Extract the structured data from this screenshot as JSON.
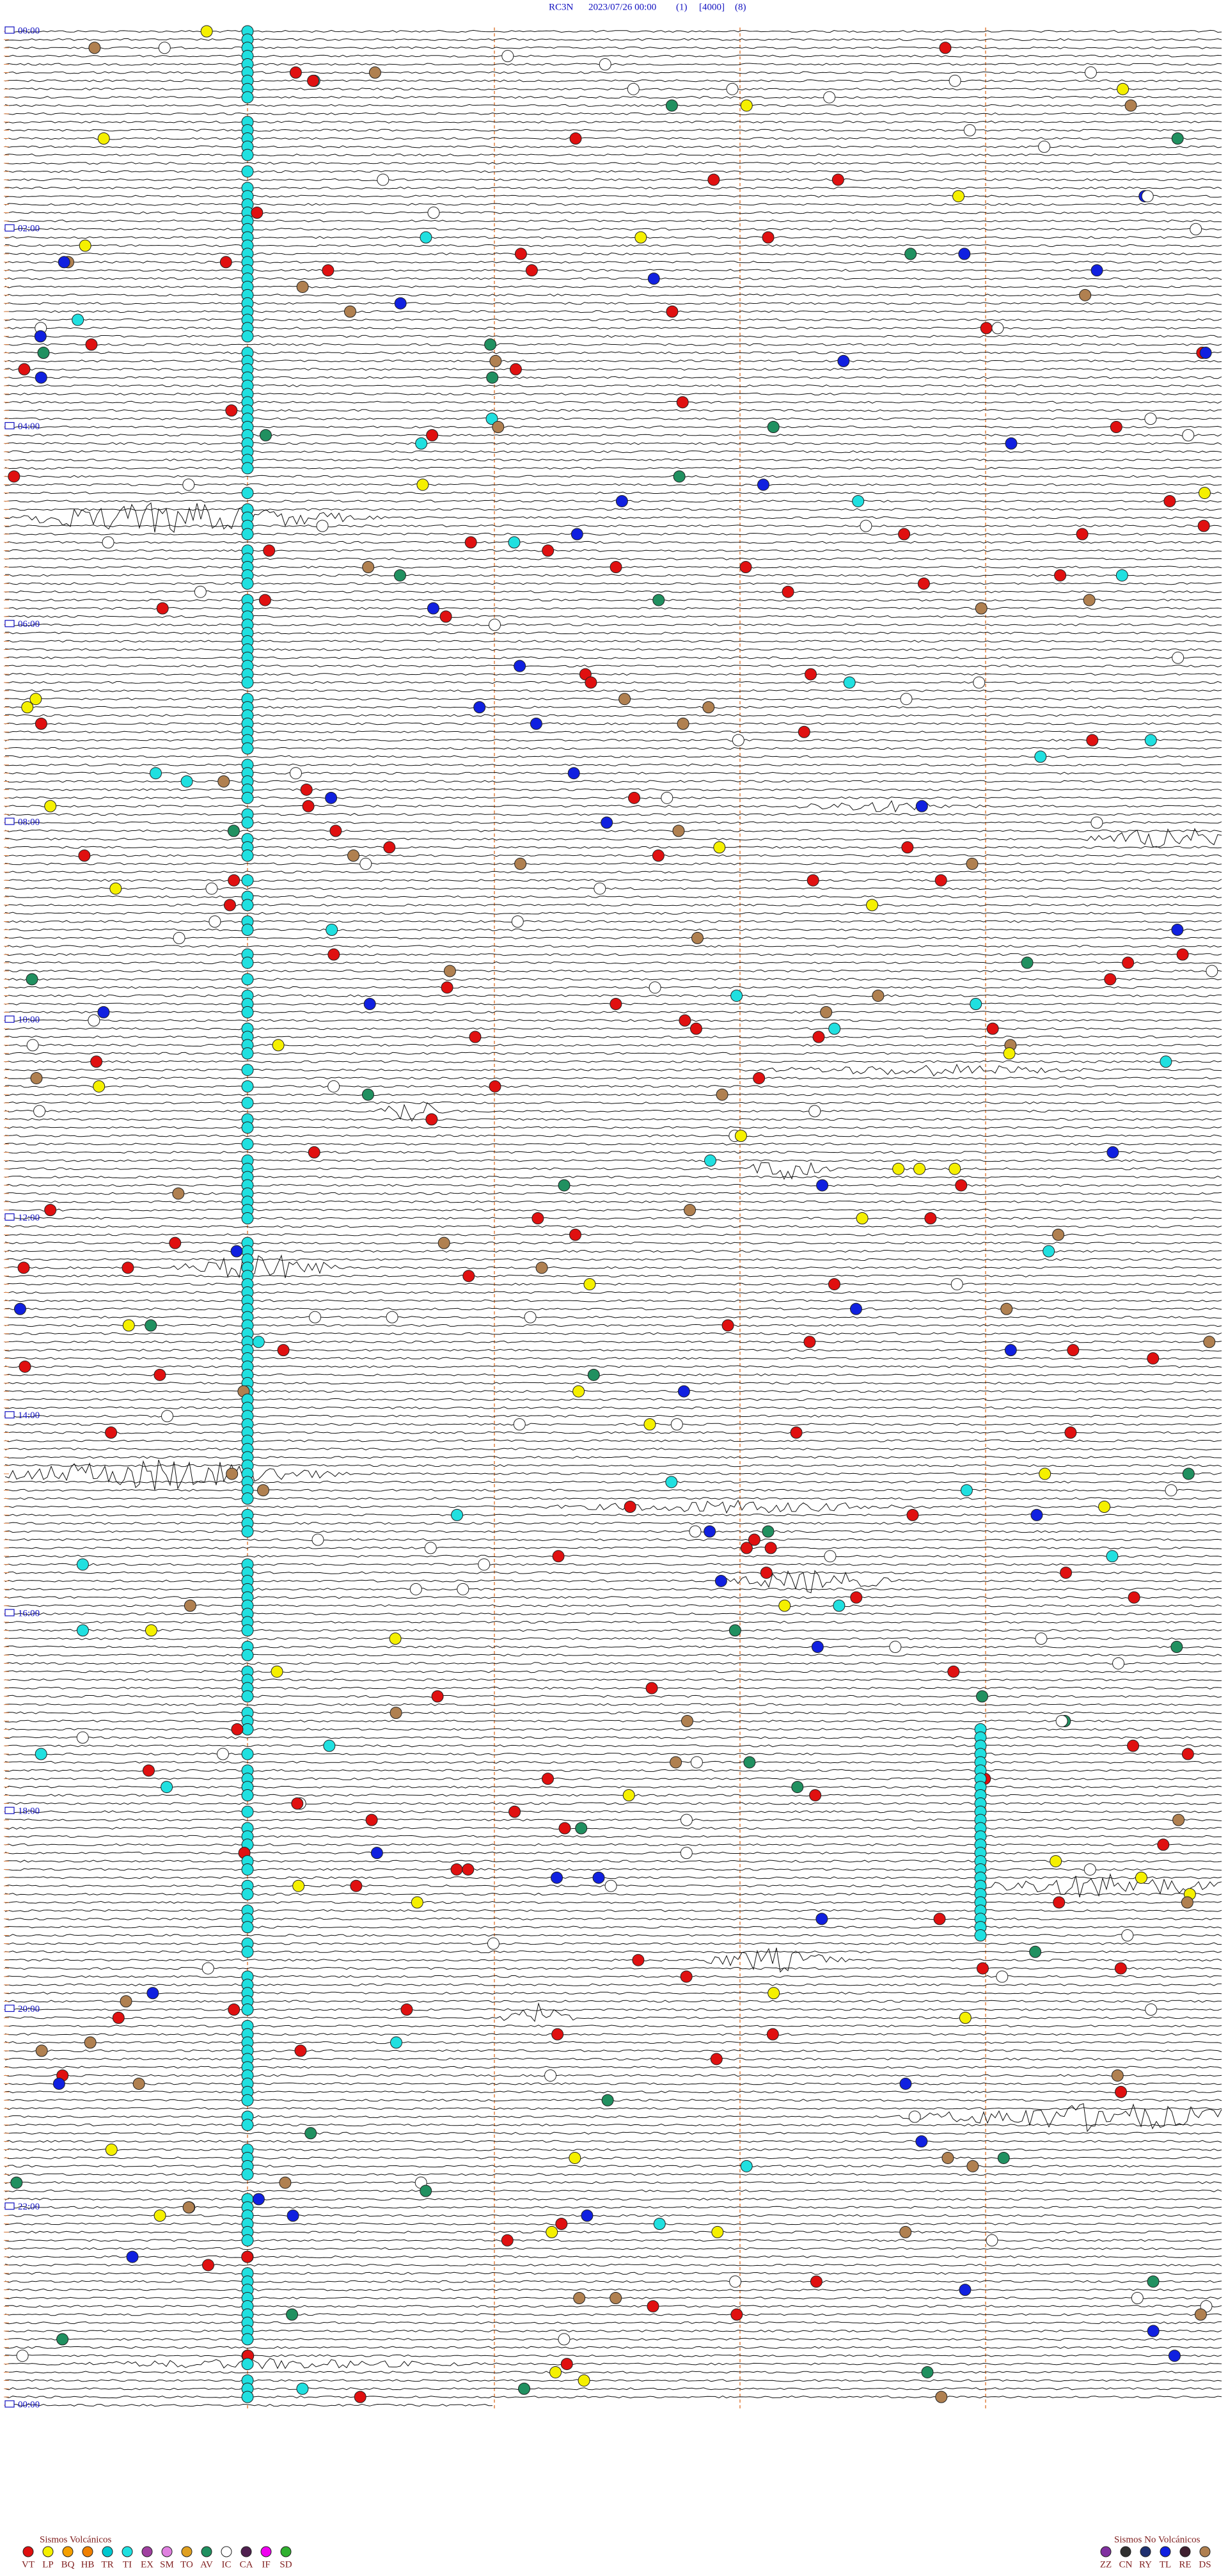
{
  "header": {
    "station": "RC3N",
    "datetime": "2023/07/26 00:00",
    "channel": "(1)",
    "scale": "[4000]",
    "filter": "(8)"
  },
  "time_labels": [
    "00:00",
    "02:00",
    "04:00",
    "06:00",
    "08:00",
    "10:00",
    "12:00",
    "14:00",
    "16:00",
    "18:00",
    "20:00",
    "22:00",
    "00:00"
  ],
  "legend": {
    "volcanic": {
      "title": "Sismos Volcánicos",
      "items": [
        {
          "code": "VT",
          "color": "#e01010"
        },
        {
          "code": "LP",
          "color": "#f5f000"
        },
        {
          "code": "BQ",
          "color": "#f5a000"
        },
        {
          "code": "HB",
          "color": "#f08000"
        },
        {
          "code": "TR",
          "color": "#00c8d0"
        },
        {
          "code": "TI",
          "color": "#20e0e0"
        },
        {
          "code": "EX",
          "color": "#a040a0"
        },
        {
          "code": "SM",
          "color": "#e080e0"
        },
        {
          "code": "TO",
          "color": "#e0a020"
        },
        {
          "code": "AV",
          "color": "#209060"
        },
        {
          "code": "IC",
          "color": "#ffffff"
        },
        {
          "code": "CA",
          "color": "#502050"
        },
        {
          "code": "IF",
          "color": "#f000f0"
        },
        {
          "code": "SD",
          "color": "#30b030"
        }
      ]
    },
    "non_volcanic": {
      "title": "Sismos No Volcánicos",
      "items": [
        {
          "code": "ZZ",
          "color": "#8030a0"
        },
        {
          "code": "CN",
          "color": "#303030"
        },
        {
          "code": "RY",
          "color": "#203070"
        },
        {
          "code": "TL",
          "color": "#1020e0"
        },
        {
          "code": "RE",
          "color": "#402030"
        },
        {
          "code": "DS",
          "color": "#b08050"
        }
      ]
    }
  }
}
